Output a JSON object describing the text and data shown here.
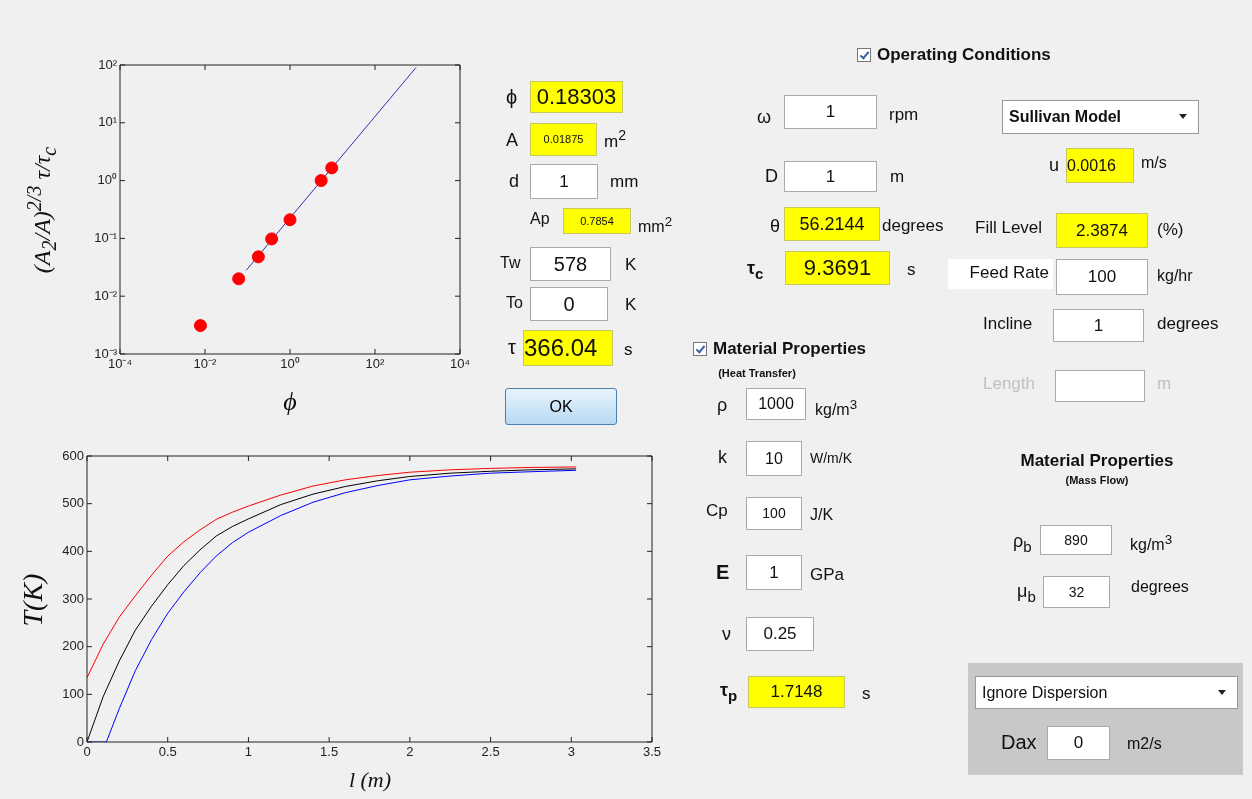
{
  "chart_data": [
    {
      "type": "scatter",
      "xlabel": "ϕ",
      "ylabel": "(A$_{2}$/A)$^{2/3}$ τ/τ$_{c}$",
      "log": "xy",
      "xlim": [
        0.0001,
        10000
      ],
      "xticks": [
        {
          "value": 0.0001,
          "label": "10⁻⁴"
        },
        {
          "value": 0.01,
          "label": "10⁻²"
        },
        {
          "value": 1,
          "label": "10⁰"
        },
        {
          "value": 100,
          "label": "10²"
        },
        {
          "value": 10000,
          "label": "10⁴"
        }
      ],
      "ylim": [
        0.001,
        100
      ],
      "yticks": [
        {
          "value": 0.001,
          "label": "10⁻³"
        },
        {
          "value": 0.01,
          "label": "10⁻²"
        },
        {
          "value": 0.1,
          "label": "10⁻¹"
        },
        {
          "value": 1,
          "label": "10⁰"
        },
        {
          "value": 10,
          "label": "10¹"
        },
        {
          "value": 100,
          "label": "10²"
        }
      ],
      "series": [
        {
          "type": "scatter",
          "marker": "circle",
          "color": "#ff0000",
          "x": [
            0.0078,
            0.062,
            0.18,
            0.37,
            1.0,
            5.4,
            9.6
          ],
          "values": [
            0.0031,
            0.02,
            0.048,
            0.098,
            0.21,
            1.0,
            1.66
          ]
        },
        {
          "type": "line",
          "color": "#3333aa",
          "x": [
            0.093,
            930
          ],
          "values": [
            0.028,
            91
          ]
        }
      ]
    },
    {
      "type": "line",
      "xlabel": "l (m)",
      "ylabel": "T(K)",
      "xlim": [
        0,
        3.5
      ],
      "xticks": [
        0,
        0.5,
        1,
        1.5,
        2,
        2.5,
        3,
        3.5
      ],
      "ylim": [
        0,
        600
      ],
      "yticks": [
        0,
        100,
        200,
        300,
        400,
        500,
        600
      ],
      "series": [
        {
          "color": "#ff0000",
          "x": [
            0,
            0.1,
            0.2,
            0.3,
            0.4,
            0.5,
            0.6,
            0.7,
            0.8,
            0.9,
            1.0,
            1.2,
            1.4,
            1.6,
            1.8,
            2.0,
            2.25,
            2.5,
            2.75,
            3.03
          ],
          "values": [
            135,
            205,
            262,
            307,
            350,
            390,
            420,
            445,
            467,
            482,
            495,
            518,
            537,
            550,
            559,
            566,
            571,
            574,
            576,
            577
          ]
        },
        {
          "color": "#000000",
          "x": [
            0,
            0.1,
            0.2,
            0.3,
            0.4,
            0.5,
            0.6,
            0.7,
            0.8,
            0.9,
            1.0,
            1.2,
            1.4,
            1.6,
            1.8,
            2.0,
            2.25,
            2.5,
            2.75,
            3.03
          ],
          "values": [
            0,
            95,
            170,
            235,
            285,
            330,
            370,
            403,
            432,
            452,
            468,
            498,
            520,
            536,
            548,
            557,
            564,
            568,
            571,
            573
          ]
        },
        {
          "color": "#0000ff",
          "x": [
            0,
            0.12,
            0.2,
            0.3,
            0.4,
            0.5,
            0.6,
            0.7,
            0.8,
            0.9,
            1.0,
            1.2,
            1.4,
            1.6,
            1.8,
            2.0,
            2.25,
            2.5,
            2.75,
            3.03
          ],
          "values": [
            0,
            0,
            70,
            150,
            215,
            270,
            315,
            355,
            390,
            418,
            440,
            475,
            503,
            523,
            538,
            550,
            558,
            564,
            567,
            570
          ]
        }
      ]
    },
    {
      "type": "other",
      "annotations": [
        "ϕ",
        "0.18303",
        "A",
        "0.01875",
        "m$^{2}$",
        "d",
        "1",
        "mm",
        "Ap",
        "0.7854",
        "mm$^{2}$",
        "Tw",
        "578",
        "K",
        "To",
        "0",
        "K",
        "τ",
        "366.04",
        "s",
        "OK",
        "Operating Conditions",
        "ω",
        "1",
        "rpm",
        "D",
        "1",
        "m",
        "θ",
        "56.2144",
        "degrees",
        "τ$_{c}$",
        "9.3691",
        "s",
        "Material Properties",
        "(Heat Transfer)",
        "ρ",
        "1000",
        "kg/m$^{3}$",
        "k",
        "10",
        "W/m/K",
        "Cp",
        "100",
        "J/K",
        "E",
        "1",
        "GPa",
        "ν",
        "0.25",
        "τ$_{p}$",
        "1.7148",
        "s",
        "Sullivan Model",
        "u",
        "0.0016",
        "m/s",
        "Fill Level",
        "2.3874",
        "(%)",
        "Feed Rate",
        "100",
        "kg/hr",
        "Incline",
        "1",
        "degrees",
        "Length",
        "m",
        "Material Properties",
        "(Mass Flow)",
        "ρ$_{b}$",
        "890",
        "kg/m$^{3}$",
        "μ$_{b}$",
        "32",
        "degrees",
        "Ignore Dispersion",
        "Dax",
        "0",
        "m2/s"
      ]
    }
  ]
}
